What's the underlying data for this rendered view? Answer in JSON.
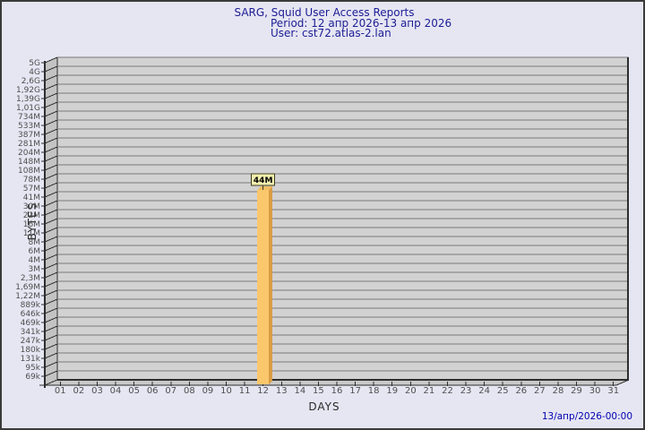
{
  "page": {
    "background": "#E6E6F3",
    "border_color": "#3A3A3A"
  },
  "header": {
    "title": "SARG, Squid User Access Reports",
    "period": "Period: 12 апр 2026-13 апр 2026",
    "user": "User: cst72.atlas-2.lan",
    "text_color": "#1C1C94"
  },
  "footer": {
    "timestamp": "13/апр/2026-00:00",
    "text_color": "#0000B0"
  },
  "chart_data": {
    "type": "bar",
    "title": "SARG, Squid User Access Reports",
    "xlabel": "DAYS",
    "ylabel": "BYTES",
    "y_scale": "log",
    "grid": true,
    "style": "3d-bar",
    "y_tick_labels": [
      "5G",
      "4G",
      "2,6G",
      "1,92G",
      "1,39G",
      "1,01G",
      "734M",
      "533M",
      "387M",
      "281M",
      "204M",
      "148M",
      "108M",
      "78M",
      "57M",
      "41M",
      "30M",
      "22M",
      "16M",
      "11M",
      "8M",
      "6M",
      "4M",
      "3M",
      "2,3M",
      "1,69M",
      "1,22M",
      "889k",
      "646k",
      "469k",
      "341k",
      "247k",
      "180k",
      "131k",
      "95k",
      "69k"
    ],
    "categories": [
      "01",
      "02",
      "03",
      "04",
      "05",
      "06",
      "07",
      "08",
      "09",
      "10",
      "11",
      "12",
      "13",
      "14",
      "15",
      "16",
      "17",
      "18",
      "19",
      "20",
      "21",
      "22",
      "23",
      "24",
      "25",
      "26",
      "27",
      "28",
      "29",
      "30",
      "31"
    ],
    "series": [
      {
        "name": "bytes",
        "values": [
          0,
          0,
          0,
          0,
          0,
          0,
          0,
          0,
          0,
          0,
          0,
          46137344,
          0,
          0,
          0,
          0,
          0,
          0,
          0,
          0,
          0,
          0,
          0,
          0,
          0,
          0,
          0,
          0,
          0,
          0,
          0
        ]
      }
    ],
    "bar_value_labels": [
      null,
      null,
      null,
      null,
      null,
      null,
      null,
      null,
      null,
      null,
      null,
      "44M",
      null,
      null,
      null,
      null,
      null,
      null,
      null,
      null,
      null,
      null,
      null,
      null,
      null,
      null,
      null,
      null,
      null,
      null,
      null
    ],
    "colors": {
      "plot_bg": "#D2D2D2",
      "grid_color": "#7B7B7B",
      "wall_color": "#C3C3C3",
      "floor_color": "#C9C9C9",
      "axis_color": "#2E2E2E",
      "bar_front": "#FBC76C",
      "bar_side": "#D99D45",
      "bar_top": "#EFBE63",
      "annotation_fill": "#F2EFAE",
      "annotation_border": "#3F3D20"
    }
  }
}
